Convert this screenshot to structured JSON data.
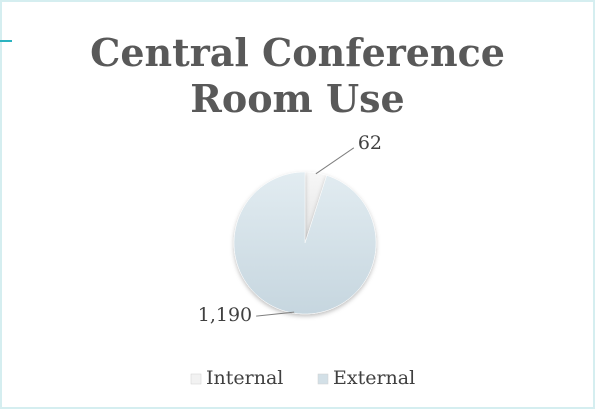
{
  "chart_data": {
    "type": "pie",
    "title": "Central Conference Room Use",
    "categories": [
      "Internal",
      "External"
    ],
    "values": [
      62,
      1190
    ],
    "value_labels": [
      "62",
      "1,190"
    ],
    "colors": [
      "#f2f2f2",
      "#d3e0e7"
    ],
    "legend": "bottom"
  }
}
